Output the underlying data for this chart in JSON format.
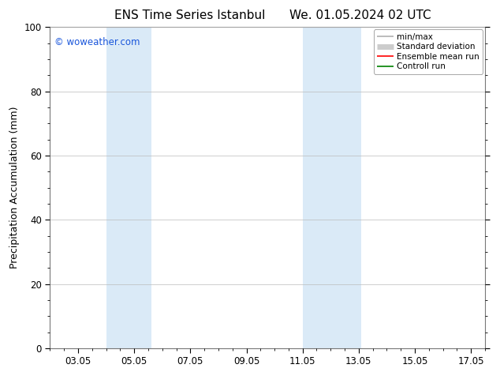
{
  "title_left": "ENS Time Series Istanbul",
  "title_right": "We. 01.05.2024 02 UTC",
  "ylabel": "Precipitation Accumulation (mm)",
  "ylim": [
    0,
    100
  ],
  "yticks": [
    0,
    20,
    40,
    60,
    80,
    100
  ],
  "x_tick_labels": [
    "03.05",
    "05.05",
    "07.05",
    "09.05",
    "11.05",
    "13.05",
    "15.05",
    "17.05"
  ],
  "x_tick_positions": [
    3,
    5,
    7,
    9,
    11,
    13,
    15,
    17
  ],
  "xlim": [
    2,
    17.5
  ],
  "shaded_bands": [
    {
      "x_start": 4.0,
      "x_end": 5.6,
      "color": "#daeaf7"
    },
    {
      "x_start": 11.0,
      "x_end": 13.1,
      "color": "#daeaf7"
    }
  ],
  "watermark_text": "© woweather.com",
  "watermark_color": "#1a56db",
  "legend_entries": [
    {
      "label": "min/max",
      "color": "#b0b0b0",
      "lw": 1.2
    },
    {
      "label": "Standard deviation",
      "color": "#cccccc",
      "lw": 5
    },
    {
      "label": "Ensemble mean run",
      "color": "#ff0000",
      "lw": 1.2
    },
    {
      "label": "Controll run",
      "color": "#008000",
      "lw": 1.2
    }
  ],
  "bg_color": "#ffffff",
  "plot_bg_color": "#ffffff",
  "grid_color": "#bbbbbb",
  "tick_label_fontsize": 8.5,
  "axis_label_fontsize": 9,
  "title_fontsize": 11
}
